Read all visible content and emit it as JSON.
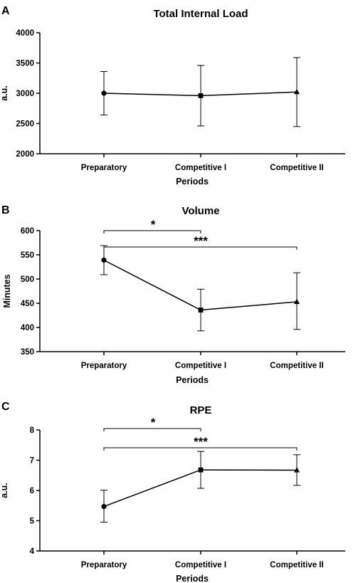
{
  "chart_data": [
    {
      "panel": "A",
      "type": "line",
      "title": "Total Internal Load",
      "xlabel": "Periods",
      "ylabel": "a.u.",
      "categories": [
        "Preparatory",
        "Competitive I",
        "Competitive II"
      ],
      "ylim": [
        2000,
        4000
      ],
      "yticks": [
        2000,
        2500,
        3000,
        3500,
        4000
      ],
      "series": [
        {
          "values": [
            3000,
            2960,
            3020
          ],
          "error_low": [
            2640,
            2460,
            2450
          ],
          "error_high": [
            3360,
            3460,
            3590
          ],
          "markers": [
            "circle",
            "square",
            "triangle"
          ]
        }
      ],
      "annotations": []
    },
    {
      "panel": "B",
      "type": "line",
      "title": "Volume",
      "xlabel": "Periods",
      "ylabel": "Minutes",
      "categories": [
        "Preparatory",
        "Competitive I",
        "Competitive II"
      ],
      "ylim": [
        350,
        600
      ],
      "yticks": [
        350,
        400,
        450,
        500,
        550,
        600
      ],
      "series": [
        {
          "values": [
            539,
            436,
            453
          ],
          "error_low": [
            509,
            393,
            396
          ],
          "error_high": [
            569,
            479,
            513
          ],
          "markers": [
            "circle",
            "square",
            "triangle"
          ]
        }
      ],
      "annotations": [
        {
          "label": "*",
          "from": "Preparatory",
          "to": "Competitive I"
        },
        {
          "label": "***",
          "from": "Preparatory",
          "to": "Competitive II"
        }
      ]
    },
    {
      "panel": "C",
      "type": "line",
      "title": "RPE",
      "xlabel": "Periods",
      "ylabel": "a.u.",
      "categories": [
        "Preparatory",
        "Competitive I",
        "Competitive II"
      ],
      "ylim": [
        4,
        8
      ],
      "yticks": [
        4,
        5,
        6,
        7,
        8
      ],
      "series": [
        {
          "values": [
            5.47,
            6.68,
            6.67
          ],
          "error_low": [
            4.95,
            6.07,
            6.17
          ],
          "error_high": [
            6.01,
            7.29,
            7.18
          ],
          "markers": [
            "circle",
            "square",
            "triangle"
          ]
        }
      ],
      "annotations": [
        {
          "label": "*",
          "from": "Preparatory",
          "to": "Competitive I"
        },
        {
          "label": "***",
          "from": "Preparatory",
          "to": "Competitive II"
        }
      ]
    }
  ]
}
